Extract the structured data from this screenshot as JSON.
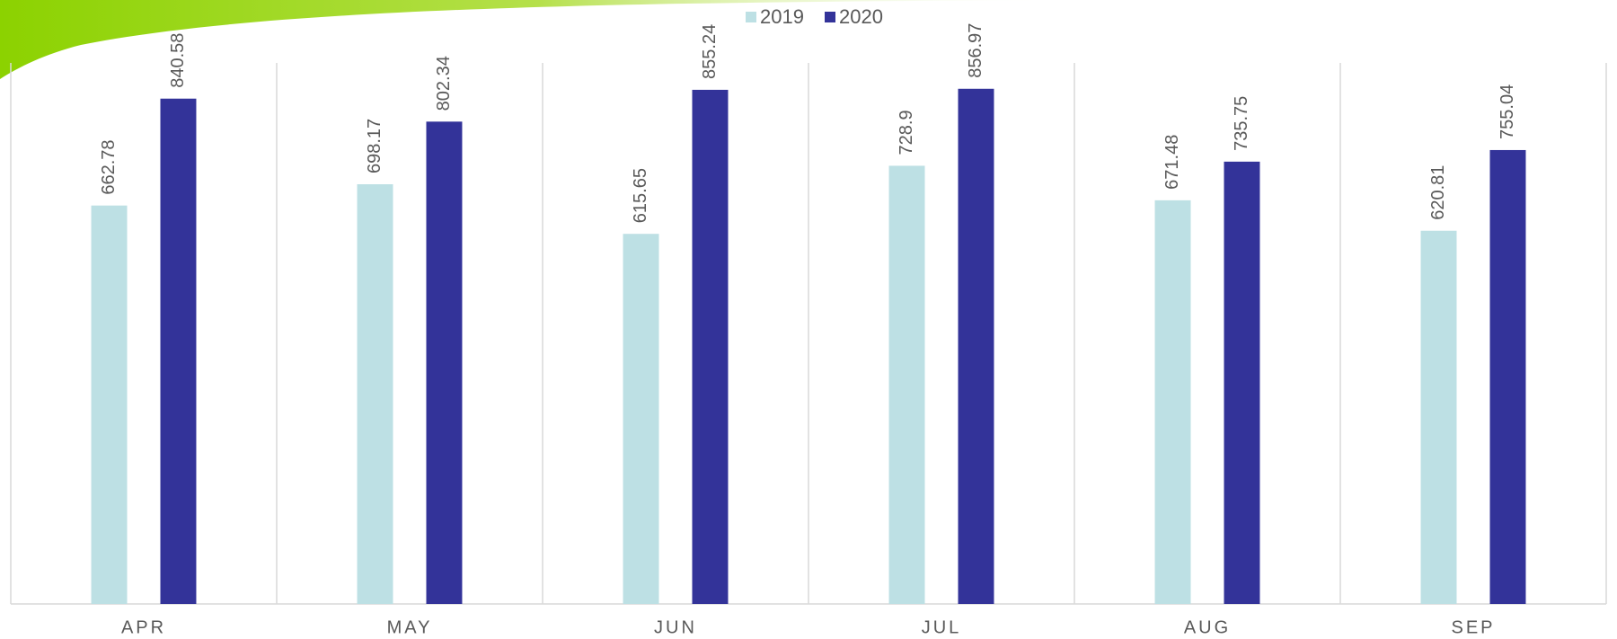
{
  "chart_data": {
    "type": "bar",
    "categories": [
      "APR",
      "MAY",
      "JUN",
      "JUL",
      "AUG",
      "SEP"
    ],
    "series": [
      {
        "name": "2019",
        "color": "#bde0e4",
        "values": [
          662.78,
          698.17,
          615.65,
          728.9,
          671.48,
          620.81
        ]
      },
      {
        "name": "2020",
        "color": "#333399",
        "values": [
          840.58,
          802.34,
          855.24,
          856.97,
          735.75,
          755.04
        ]
      }
    ],
    "ylim": [
      0,
      900
    ],
    "legend": "top"
  }
}
